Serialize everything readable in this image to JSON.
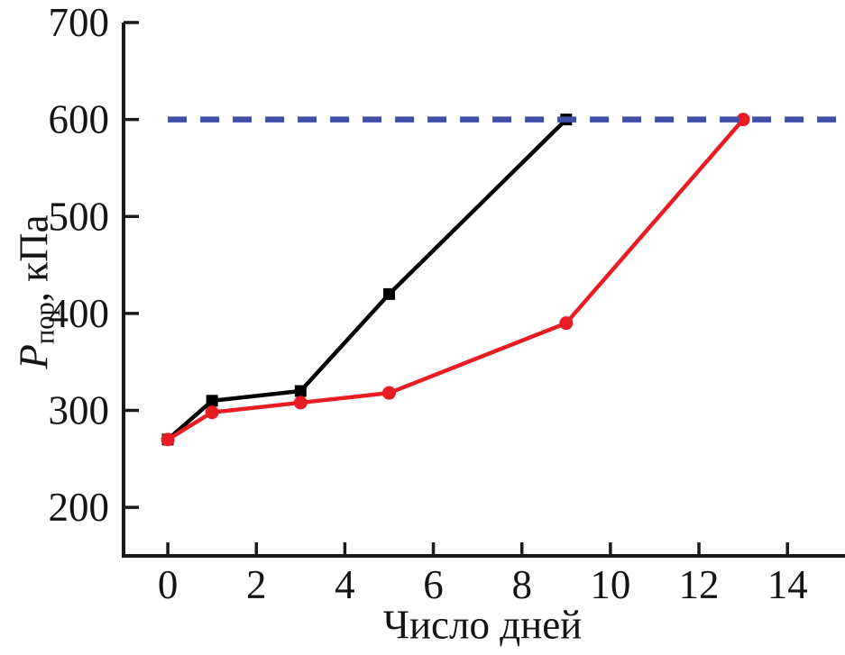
{
  "chart_data": {
    "type": "line",
    "title": "",
    "xlabel": "Число дней",
    "ylabel": "Pпор, кПа",
    "ylabel_parts": {
      "symbol": "P",
      "subscript": "пор",
      "rest": ", кПа"
    },
    "xlim": [
      -1,
      15.3
    ],
    "ylim": [
      150,
      700
    ],
    "x_ticks": [
      0,
      2,
      4,
      6,
      8,
      10,
      12,
      14
    ],
    "y_ticks": [
      200,
      300,
      400,
      500,
      600,
      700
    ],
    "grid": false,
    "legend": "none",
    "colors": {
      "axis": "#1a1a1a",
      "series_black": "#000000",
      "series_red": "#e81c23",
      "threshold_blue": "#3f4fa8",
      "tick_text": "#141414"
    },
    "series": [
      {
        "name": "black-squares",
        "color_key": "series_black",
        "marker": "square",
        "x": [
          0,
          1,
          3,
          5,
          9
        ],
        "y": [
          270,
          310,
          320,
          420,
          600
        ]
      },
      {
        "name": "red-circles",
        "color_key": "series_red",
        "marker": "circle",
        "x": [
          0,
          1,
          3,
          5,
          9,
          13
        ],
        "y": [
          270,
          298,
          308,
          318,
          390,
          600
        ]
      }
    ],
    "threshold_line": {
      "y": 600,
      "style": "dashed",
      "color_key": "threshold_blue",
      "x_start": 0,
      "x_end": 15.3
    }
  }
}
